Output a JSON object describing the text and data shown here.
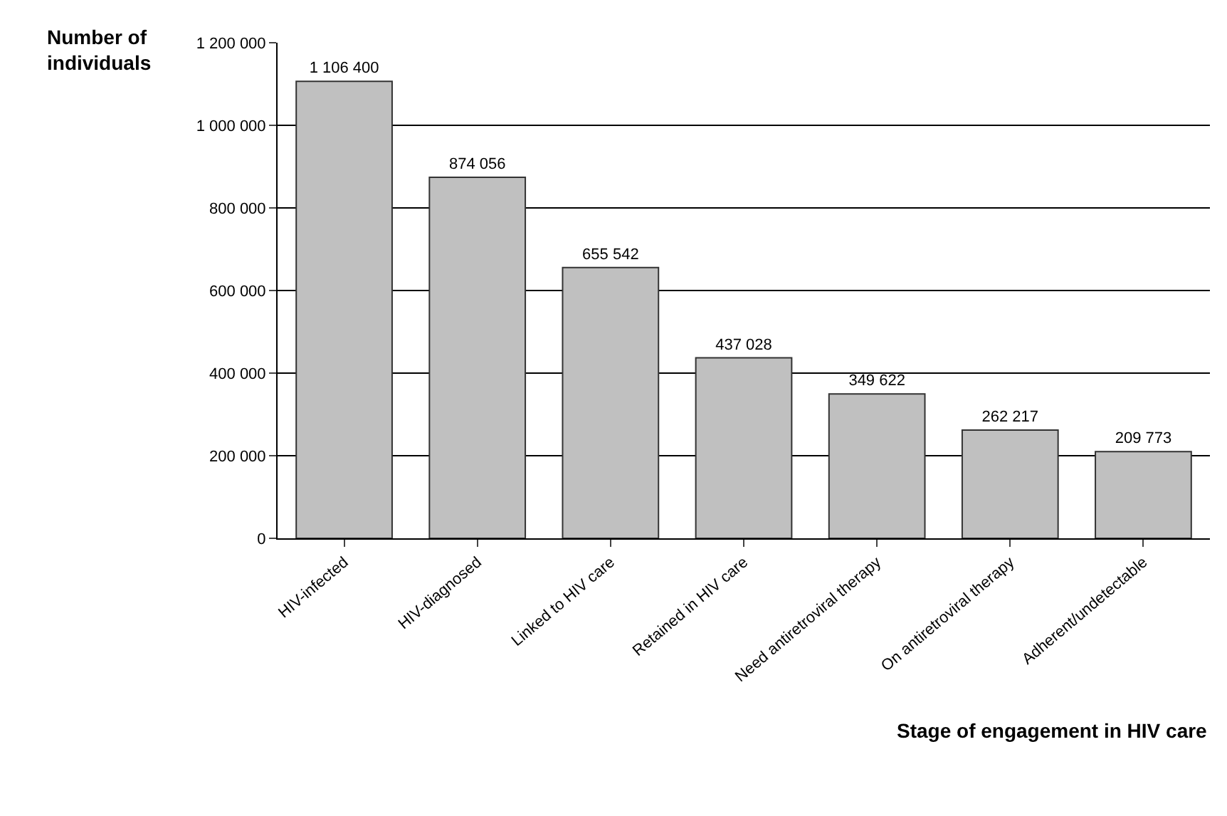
{
  "chart_data": {
    "type": "bar",
    "ylabel": "Number of individuals",
    "xlabel": "Stage of engagement in HIV care",
    "categories": [
      "HIV-infected",
      "HIV-diagnosed",
      "Linked to HIV care",
      "Retained in HIV care",
      "Need antiretroviral therapy",
      "On antiretroviral therapy",
      "Adherent/undetectable"
    ],
    "values": [
      1106400,
      874056,
      655542,
      437028,
      349622,
      262217,
      209773
    ],
    "value_labels": [
      "1 106 400",
      "874 056",
      "655 542",
      "437 028",
      "349 622",
      "262 217",
      "209 773"
    ],
    "color": "#c0c0c0",
    "ylim": [
      0,
      1200000
    ],
    "yticks": [
      0,
      {
        "value": 200000,
        "label": "200 000"
      },
      {
        "value": 400000,
        "label": "400 000"
      },
      {
        "value": 600000,
        "label": "600 000"
      },
      {
        "value": 800000,
        "label": "800 000"
      },
      {
        "value": 1000000,
        "label": "1 000 000"
      },
      {
        "value": 1200000,
        "label": "1 200 000"
      }
    ],
    "grid": "y",
    "legend": false
  }
}
